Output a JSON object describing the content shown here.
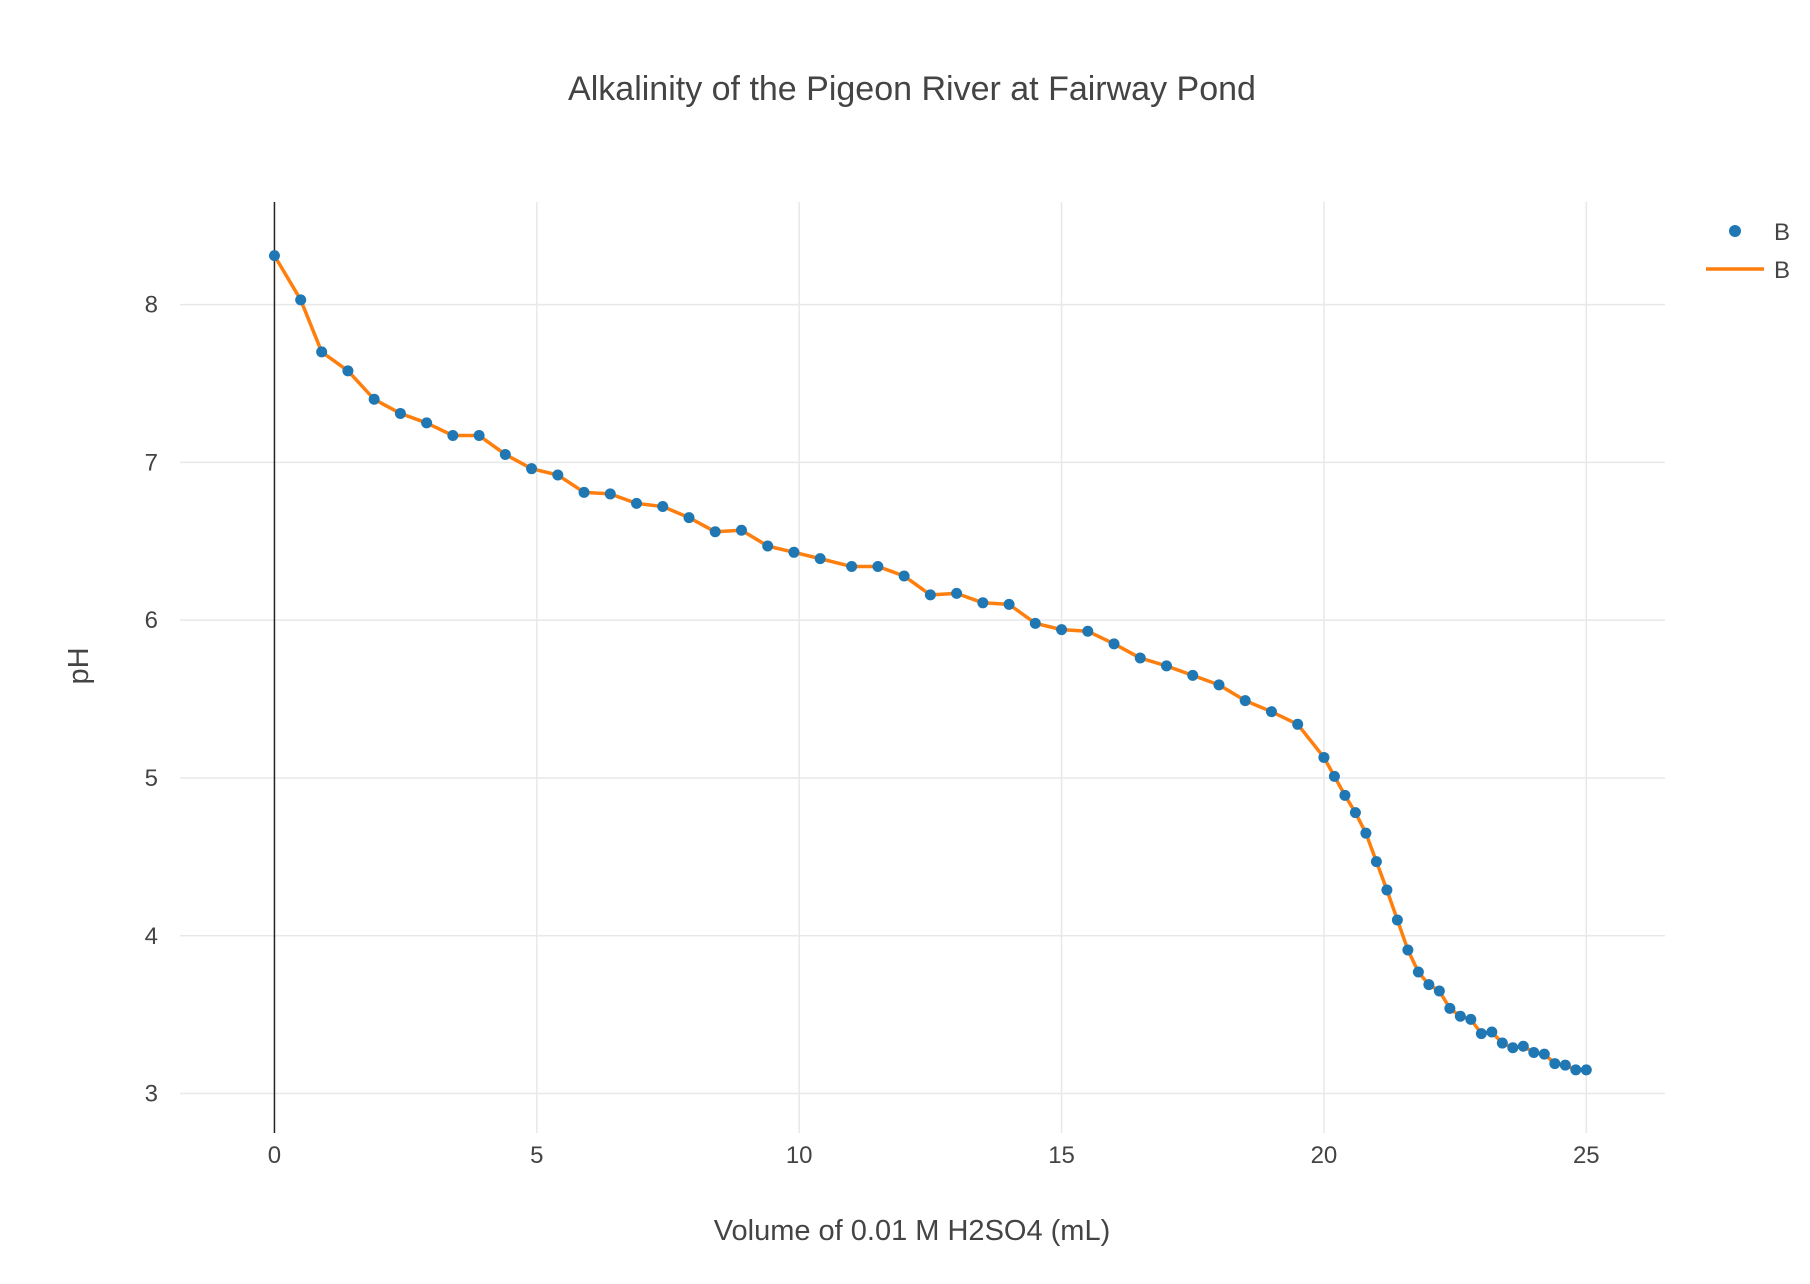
{
  "chart_data": {
    "type": "line",
    "title": "Alkalinity of the Pigeon River at Fairway Pond",
    "xlabel": "Volume of 0.01 M H2SO4 (mL)",
    "ylabel": "pH",
    "xlim": [
      -1.8,
      26.5
    ],
    "ylim": [
      2.75,
      8.65
    ],
    "xticks": [
      0,
      5,
      10,
      15,
      20,
      25
    ],
    "yticks": [
      3,
      4,
      5,
      6,
      7,
      8
    ],
    "grid": true,
    "legend_position": "top-right",
    "colors": {
      "marker": "#1f77b4",
      "line": "#ff7f0e",
      "grid": "#e8e8e8",
      "zeroline": "#222222",
      "text": "#444444"
    },
    "series": [
      {
        "name": "B",
        "mode": "markers"
      },
      {
        "name": "B",
        "mode": "lines"
      }
    ],
    "x": [
      0,
      0.5,
      0.9,
      1.4,
      1.9,
      2.4,
      2.9,
      3.4,
      3.9,
      4.4,
      4.9,
      5.4,
      5.9,
      6.4,
      6.9,
      7.4,
      7.9,
      8.4,
      8.9,
      9.4,
      9.9,
      10.4,
      11.0,
      11.5,
      12.0,
      12.5,
      13.0,
      13.5,
      14.0,
      14.5,
      15.0,
      15.5,
      16.0,
      16.5,
      17.0,
      17.5,
      18.0,
      18.5,
      19.0,
      19.5,
      20.0,
      20.2,
      20.4,
      20.6,
      20.8,
      21.0,
      21.2,
      21.4,
      21.6,
      21.8,
      22.0,
      22.2,
      22.4,
      22.6,
      22.8,
      23.0,
      23.2,
      23.4,
      23.6,
      23.8,
      24.0,
      24.2,
      24.4,
      24.6,
      24.8,
      25.0
    ],
    "y": [
      8.31,
      8.03,
      7.7,
      7.58,
      7.4,
      7.31,
      7.25,
      7.17,
      7.17,
      7.05,
      6.96,
      6.92,
      6.81,
      6.8,
      6.74,
      6.72,
      6.65,
      6.56,
      6.57,
      6.47,
      6.43,
      6.39,
      6.34,
      6.34,
      6.28,
      6.16,
      6.17,
      6.11,
      6.1,
      5.98,
      5.94,
      5.93,
      5.85,
      5.76,
      5.71,
      5.65,
      5.59,
      5.49,
      5.42,
      5.34,
      5.13,
      5.01,
      4.89,
      4.78,
      4.65,
      4.47,
      4.29,
      4.1,
      3.91,
      3.77,
      3.69,
      3.65,
      3.54,
      3.49,
      3.47,
      3.38,
      3.39,
      3.32,
      3.29,
      3.3,
      3.26,
      3.25,
      3.19,
      3.18,
      3.15,
      3.15
    ]
  }
}
